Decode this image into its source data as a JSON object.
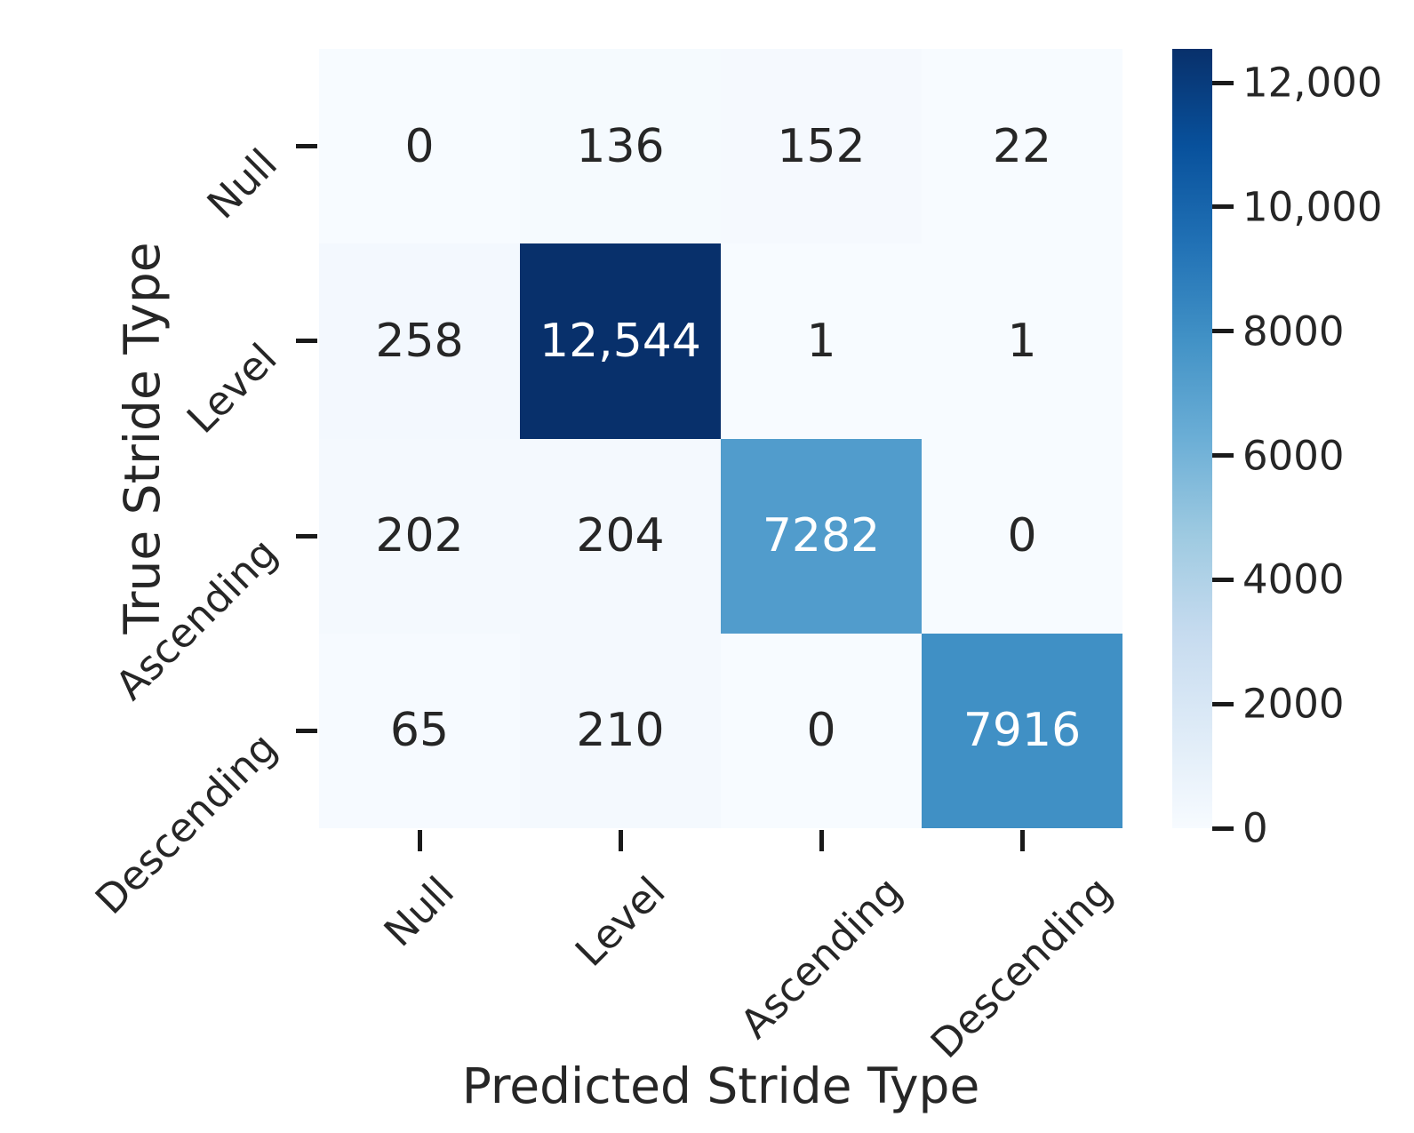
{
  "chart_data": {
    "type": "heatmap",
    "title": "",
    "xlabel": "Predicted Stride Type",
    "ylabel": "True Stride Type",
    "x_categories": [
      "Null",
      "Level",
      "Ascending",
      "Descending"
    ],
    "y_categories": [
      "Null",
      "Level",
      "Ascending",
      "Descending"
    ],
    "matrix": [
      [
        0,
        136,
        152,
        22
      ],
      [
        258,
        12544,
        1,
        1
      ],
      [
        202,
        204,
        7282,
        0
      ],
      [
        65,
        210,
        0,
        7916
      ]
    ],
    "cell_labels": [
      [
        "0",
        "136",
        "152",
        "22"
      ],
      [
        "258",
        "12,544",
        "1",
        "1"
      ],
      [
        "202",
        "204",
        "7282",
        "0"
      ],
      [
        "65",
        "210",
        "0",
        "7916"
      ]
    ],
    "vmin": 0,
    "vmax": 12544,
    "grid": false,
    "legend_position": "right-colorbar",
    "colormap": {
      "name": "Blues",
      "anchors": [
        "#f7fbff",
        "#deebf7",
        "#c6dbef",
        "#9ecae1",
        "#6baed6",
        "#4292c6",
        "#2171b5",
        "#08519c",
        "#08306b"
      ]
    },
    "annotation_colors": {
      "light_cell_text": "#262626",
      "dark_cell_text": "#ffffff"
    },
    "colorbar": {
      "ticks": [
        {
          "value": 0,
          "label": "0"
        },
        {
          "value": 2000,
          "label": "2000"
        },
        {
          "value": 4000,
          "label": "4000"
        },
        {
          "value": 6000,
          "label": "6000"
        },
        {
          "value": 8000,
          "label": "8000"
        },
        {
          "value": 10000,
          "label": "10,000"
        },
        {
          "value": 12000,
          "label": "12,000"
        }
      ]
    }
  }
}
